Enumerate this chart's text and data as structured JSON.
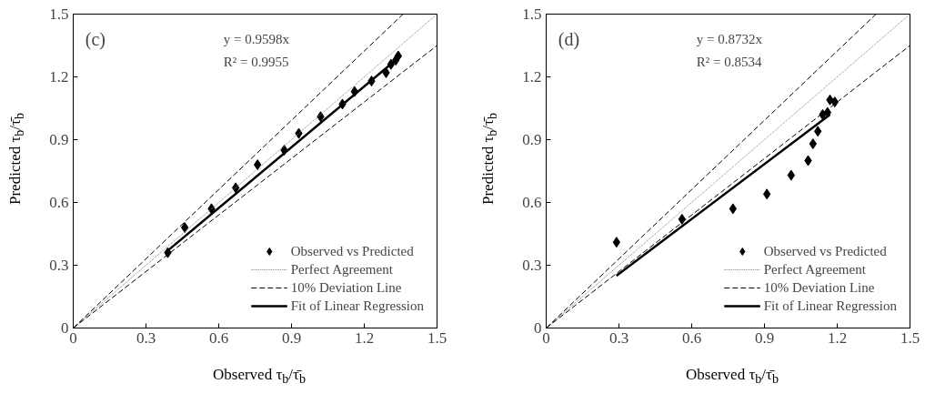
{
  "chart_data": [
    {
      "type": "scatter",
      "xlabel": "Observed τ$_{b}$/τ̄$_{b}$",
      "ylabel": "Predicted τ$_{b}$/τ̄$_{b}$",
      "annotations": [
        "(c)",
        "y = 0.9598x",
        "R² = 0.9955"
      ],
      "xlim": [
        0,
        1.5
      ],
      "ylim": [
        0,
        1.5
      ],
      "xticks": [
        0,
        0.3,
        0.6,
        0.9,
        1.2,
        1.5
      ],
      "yticks": [
        0,
        0.3,
        0.6,
        0.9,
        1.2,
        1.5
      ],
      "grid": false,
      "legend": "bottom right",
      "x": [
        0.39,
        0.46,
        0.57,
        0.67,
        0.76,
        0.87,
        0.93,
        1.02,
        1.11,
        1.16,
        1.23,
        1.29,
        1.31,
        1.33,
        1.34
      ],
      "series": [
        {
          "name": "Observed vs Predicted",
          "color": "#000000",
          "marker": "diamond",
          "values": [
            0.36,
            0.48,
            0.57,
            0.67,
            0.78,
            0.85,
            0.93,
            1.01,
            1.07,
            1.13,
            1.18,
            1.22,
            1.26,
            1.28,
            1.3
          ]
        },
        {
          "name": "Perfect Agreement",
          "type": "line",
          "line_style": "dotted",
          "color": "#808080",
          "x": [
            0,
            1.5
          ],
          "values": [
            0,
            1.5
          ]
        },
        {
          "name": "10% Deviation Line",
          "type": "line",
          "line_style": "dashed",
          "color": "#000000",
          "x": [
            0,
            1.36
          ],
          "values": [
            0,
            1.5
          ]
        },
        {
          "type": "line",
          "line_style": "dashed",
          "color": "#000000",
          "x": [
            0,
            1.5
          ],
          "values": [
            0,
            1.35
          ]
        },
        {
          "name": "Fit of Linear Regression",
          "type": "line",
          "line_style": "solid",
          "color": "#000000",
          "x": [
            0.39,
            1.35
          ],
          "values": [
            0.37,
            1.3
          ]
        }
      ]
    },
    {
      "type": "scatter",
      "xlabel": "Observed τ$_{b}$/τ̄$_{b}$",
      "ylabel": "Predicted τ$_{b}$/τ̄$_{b}$",
      "annotations": [
        "(d)",
        "y = 0.8732x",
        "R² = 0.8534"
      ],
      "xlim": [
        0,
        1.5
      ],
      "ylim": [
        0,
        1.5
      ],
      "xticks": [
        0,
        0.3,
        0.6,
        0.9,
        1.2,
        1.5
      ],
      "yticks": [
        0,
        0.3,
        0.6,
        0.9,
        1.2,
        1.5
      ],
      "grid": false,
      "legend": "bottom right",
      "x": [
        0.29,
        0.56,
        0.77,
        0.91,
        1.01,
        1.08,
        1.1,
        1.12,
        1.14,
        1.16,
        1.17,
        1.19
      ],
      "series": [
        {
          "name": "Observed vs Predicted",
          "color": "#000000",
          "marker": "diamond",
          "values": [
            0.41,
            0.52,
            0.57,
            0.64,
            0.73,
            0.8,
            0.88,
            0.94,
            1.02,
            1.03,
            1.09,
            1.08
          ]
        },
        {
          "name": "Perfect Agreement",
          "type": "line",
          "line_style": "dotted",
          "color": "#808080",
          "x": [
            0,
            1.5
          ],
          "values": [
            0,
            1.5
          ]
        },
        {
          "name": "10% Deviation Line",
          "type": "line",
          "line_style": "dashed",
          "color": "#000000",
          "x": [
            0,
            1.36
          ],
          "values": [
            0,
            1.5
          ]
        },
        {
          "type": "line",
          "line_style": "dashed",
          "color": "#000000",
          "x": [
            0,
            1.5
          ],
          "values": [
            0,
            1.35
          ]
        },
        {
          "name": "Fit of Linear Regression",
          "type": "line",
          "line_style": "solid",
          "color": "#000000",
          "x": [
            0.29,
            1.17
          ],
          "values": [
            0.25,
            1.02
          ]
        }
      ]
    }
  ]
}
